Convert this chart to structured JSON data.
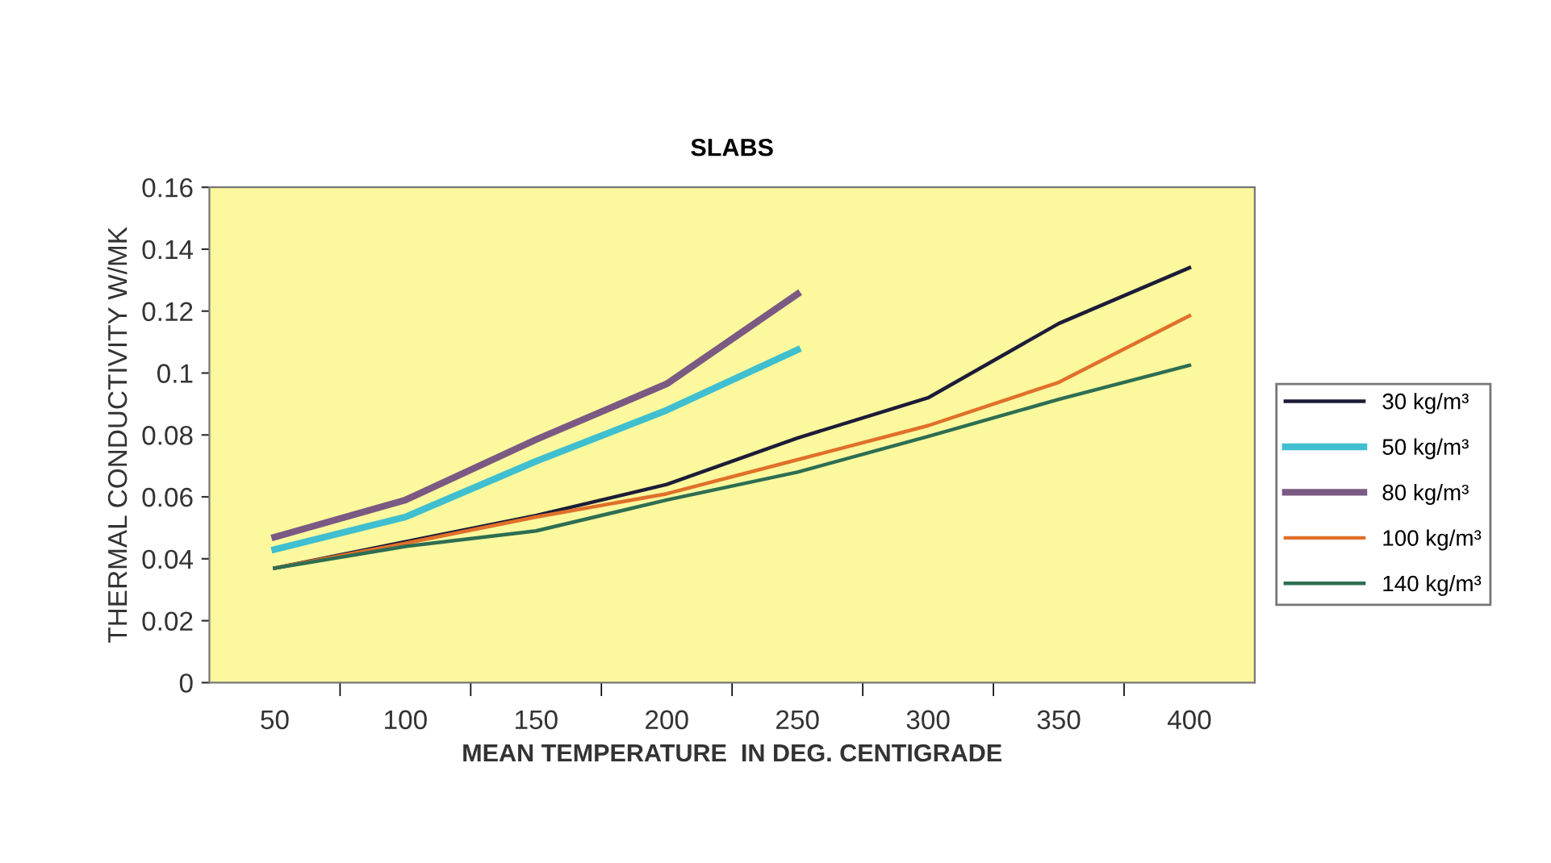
{
  "chart_data": {
    "type": "line",
    "title": "SLABS",
    "xlabel": "MEAN TEMPERATURE  IN DEG. CENTIGRADE",
    "ylabel": "THERMAL CONDUCTIVITY W/MK",
    "categories": [
      "50",
      "100",
      "150",
      "200",
      "250",
      "300",
      "350",
      "400"
    ],
    "series": [
      {
        "name": "30 kg/m³",
        "color": "#1c1c38",
        "values": [
          0.037,
          0.0455,
          0.054,
          0.064,
          0.079,
          0.092,
          0.116,
          0.134
        ]
      },
      {
        "name": "50 kg/m³",
        "color": "#3fbfcf",
        "values": [
          0.043,
          0.0535,
          0.0715,
          0.088,
          0.1075,
          null,
          null,
          null
        ]
      },
      {
        "name": "80 kg/m³",
        "color": "#7a5a82",
        "values": [
          0.047,
          0.059,
          0.0785,
          0.0965,
          0.1255,
          null,
          null,
          null
        ]
      },
      {
        "name": "100 kg/m³",
        "color": "#e0702a",
        "values": [
          0.037,
          0.045,
          0.0535,
          0.061,
          0.072,
          0.083,
          0.097,
          0.1185
        ]
      },
      {
        "name": "140 kg/m³",
        "color": "#2e6e52",
        "values": [
          0.037,
          0.044,
          0.049,
          0.059,
          0.068,
          0.0795,
          0.0915,
          0.1025
        ]
      }
    ],
    "ylim": [
      0,
      0.16
    ],
    "yticks": [
      0,
      0.02,
      0.04,
      0.06,
      0.08,
      {
        "value": 0.1,
        "label": "0.1"
      },
      0.12,
      0.14,
      0.16
    ],
    "grid": false,
    "legend": "right",
    "marker": "none",
    "line_style": "solid"
  }
}
